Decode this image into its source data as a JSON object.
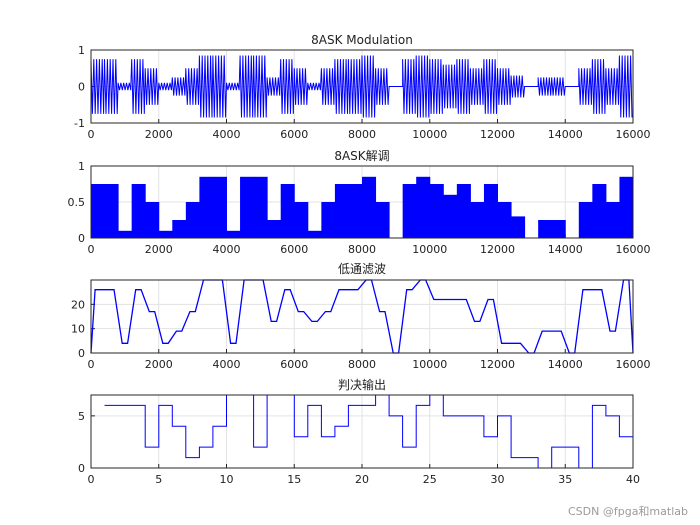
{
  "watermark": "CSDN @fpga和matlab",
  "chart_data": [
    {
      "type": "line",
      "title": "8ASK Modulation",
      "xlim": [
        0,
        16000
      ],
      "ylim": [
        -1,
        1
      ],
      "xticks": [
        "0",
        "2000",
        "4000",
        "6000",
        "8000",
        "10000",
        "12000",
        "14000",
        "16000"
      ],
      "yticks": [
        "-1",
        "0",
        "1"
      ],
      "grid": true,
      "color": "#0000ff",
      "envelope": {
        "x": [
          0,
          400,
          800,
          1200,
          1600,
          2000,
          2400,
          2800,
          3200,
          3600,
          4000,
          4400,
          4800,
          5200,
          5600,
          6000,
          6400,
          6800,
          7200,
          7600,
          8000,
          8400,
          8800,
          9200,
          9600,
          10000,
          10400,
          10800,
          11200,
          11600,
          12000,
          12400,
          12800,
          13200,
          13600,
          14000,
          14400,
          14800,
          15200,
          15600
        ],
        "amp": [
          0.75,
          0.75,
          0.1,
          0.75,
          0.5,
          0.1,
          0.25,
          0.5,
          0.85,
          0.85,
          0.1,
          0.85,
          0.85,
          0.25,
          0.75,
          0.5,
          0.1,
          0.5,
          0.75,
          0.75,
          0.85,
          0.5,
          0,
          0.75,
          0.85,
          0.75,
          0.6,
          0.75,
          0.5,
          0.75,
          0.5,
          0.3,
          0,
          0.25,
          0.25,
          0,
          0.5,
          0.75,
          0.5,
          0.85
        ]
      }
    },
    {
      "type": "bar",
      "title": "8ASK解调",
      "xlim": [
        0,
        16000
      ],
      "ylim": [
        0,
        1
      ],
      "xticks": [
        "0",
        "2000",
        "4000",
        "6000",
        "8000",
        "10000",
        "12000",
        "14000",
        "16000"
      ],
      "yticks": [
        "0",
        "0.5",
        "1"
      ],
      "grid": true,
      "color": "#0000ff",
      "x": [
        0,
        400,
        800,
        1200,
        1600,
        2000,
        2400,
        2800,
        3200,
        3600,
        4000,
        4400,
        4800,
        5200,
        5600,
        6000,
        6400,
        6800,
        7200,
        7600,
        8000,
        8400,
        8800,
        9200,
        9600,
        10000,
        10400,
        10800,
        11200,
        11600,
        12000,
        12400,
        12800,
        13200,
        13600,
        14000,
        14400,
        14800,
        15200,
        15600
      ],
      "values": [
        0.75,
        0.75,
        0.1,
        0.75,
        0.5,
        0.1,
        0.25,
        0.5,
        0.85,
        0.85,
        0.1,
        0.85,
        0.85,
        0.25,
        0.75,
        0.5,
        0.1,
        0.5,
        0.75,
        0.75,
        0.85,
        0.5,
        0,
        0.75,
        0.85,
        0.75,
        0.6,
        0.75,
        0.5,
        0.75,
        0.5,
        0.3,
        0,
        0.25,
        0.25,
        0,
        0.5,
        0.75,
        0.5,
        0.85
      ]
    },
    {
      "type": "line",
      "title": "低通滤波",
      "xlim": [
        0,
        16000
      ],
      "ylim": [
        0,
        30
      ],
      "xticks": [
        "0",
        "2000",
        "4000",
        "6000",
        "8000",
        "10000",
        "12000",
        "14000",
        "16000"
      ],
      "yticks": [
        "0",
        "10",
        "20"
      ],
      "grid": true,
      "color": "#0000ff",
      "x": [
        0,
        400,
        800,
        1200,
        1600,
        2000,
        2400,
        2800,
        3200,
        3600,
        4000,
        4400,
        4800,
        5200,
        5600,
        6000,
        6400,
        6800,
        7200,
        7600,
        8000,
        8400,
        8800,
        9200,
        9600,
        10000,
        10400,
        10800,
        11200,
        11600,
        12000,
        12400,
        12800,
        13200,
        13600,
        14000,
        14400,
        14800,
        15200,
        15600
      ],
      "values": [
        26,
        26,
        4,
        26,
        17,
        4,
        9,
        17,
        30,
        30,
        4,
        30,
        30,
        13,
        26,
        17,
        13,
        17,
        26,
        26,
        30,
        17,
        0,
        26,
        30,
        22,
        22,
        22,
        13,
        22,
        4,
        4,
        0,
        9,
        9,
        0,
        26,
        26,
        9,
        30
      ]
    },
    {
      "type": "line",
      "title": "判决输出",
      "xlim": [
        0,
        40
      ],
      "ylim": [
        0,
        7
      ],
      "xticks": [
        "0",
        "5",
        "10",
        "15",
        "20",
        "25",
        "30",
        "35",
        "40"
      ],
      "yticks": [
        "0",
        "5"
      ],
      "grid": true,
      "color": "#0000ff",
      "x": [
        1,
        2,
        3,
        4,
        5,
        6,
        7,
        8,
        9,
        10,
        11,
        12,
        13,
        14,
        15,
        16,
        17,
        18,
        19,
        20,
        21,
        22,
        23,
        24,
        25,
        26,
        27,
        28,
        29,
        30,
        31,
        32,
        33,
        34,
        35,
        36,
        37,
        38,
        39,
        40
      ],
      "values": [
        6,
        6,
        6,
        2,
        6,
        4,
        1,
        2,
        4,
        7,
        7,
        2,
        7,
        7,
        3,
        6,
        3,
        4,
        6,
        6,
        7,
        5,
        2,
        6,
        7,
        5,
        5,
        5,
        3,
        5,
        1,
        1,
        0,
        2,
        2,
        0,
        6,
        5,
        3,
        7
      ]
    }
  ]
}
